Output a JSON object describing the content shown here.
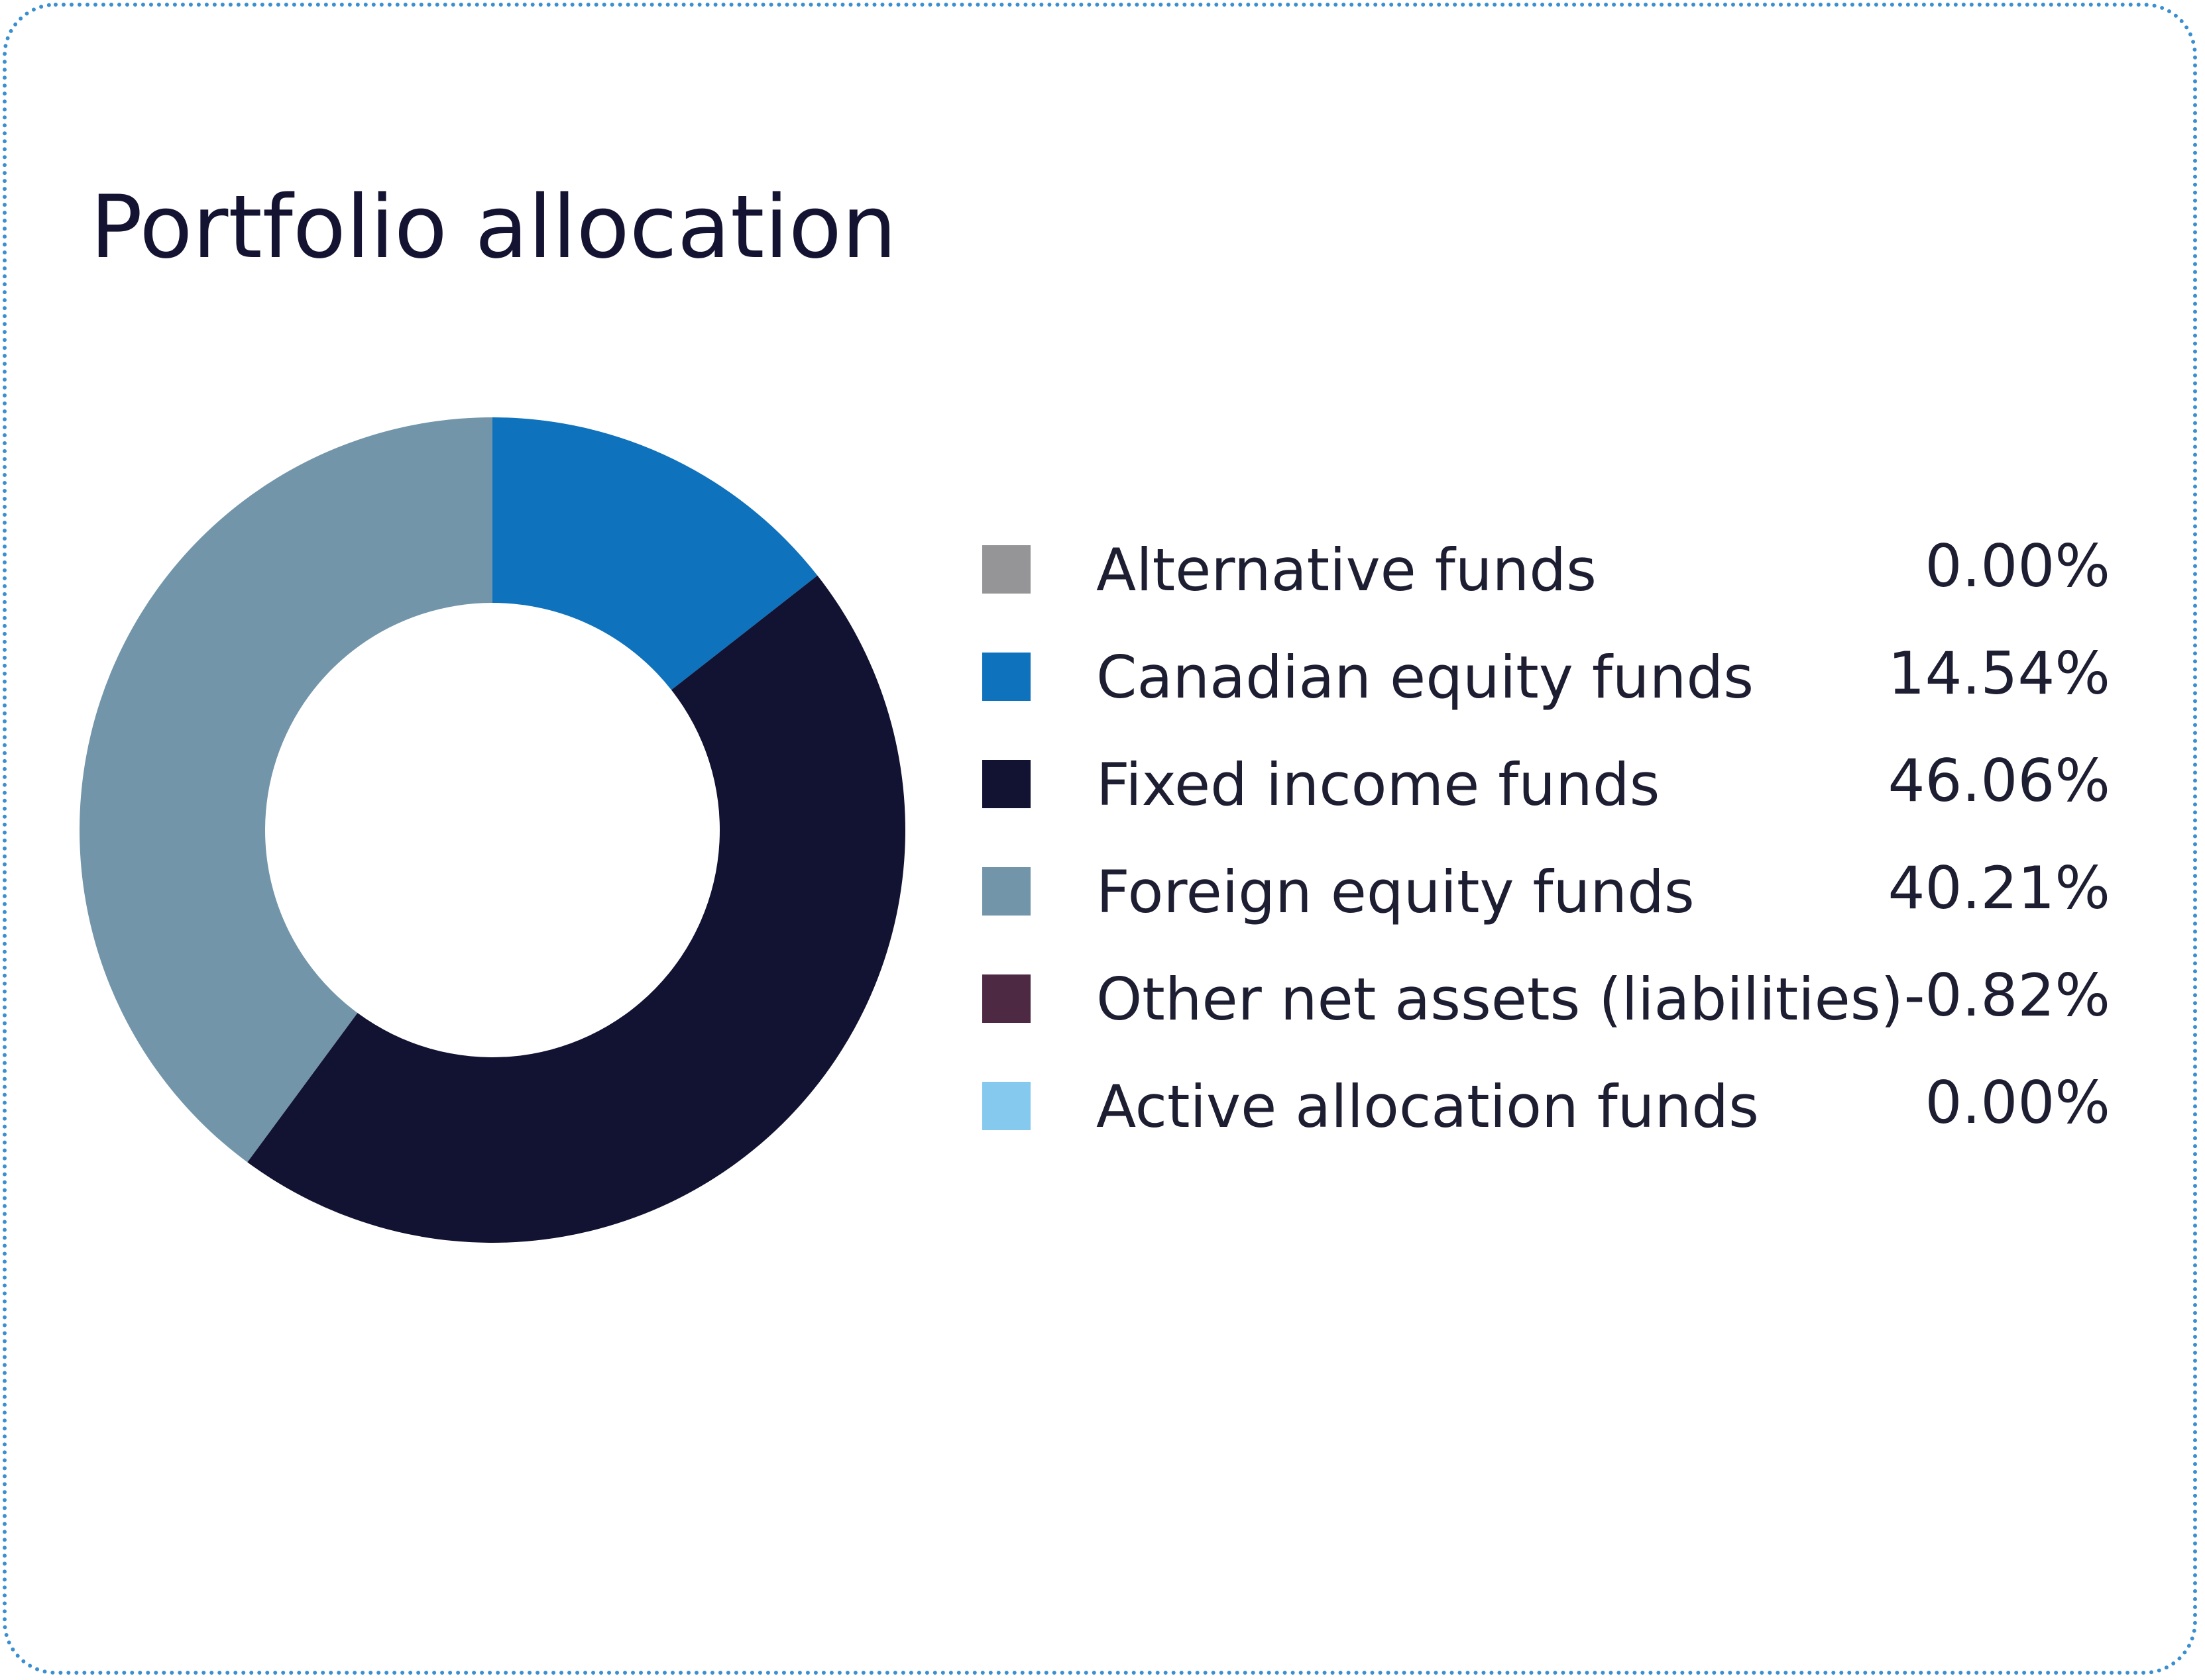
{
  "title": "Portfolio allocation",
  "chart_data": {
    "type": "pie",
    "title": "Portfolio allocation",
    "categories": [
      "Alternative funds",
      "Canadian equity funds",
      "Fixed income funds",
      "Foreign equity funds",
      "Other net assets (liabilities)",
      "Active allocation funds"
    ],
    "values": [
      0.0,
      14.54,
      46.06,
      40.21,
      -0.82,
      0.0
    ],
    "value_labels": [
      "0.00%",
      "14.54%",
      "46.06%",
      "40.21%",
      "-0.82%",
      "0.00%"
    ],
    "colors": [
      "#959597",
      "#0e72bd",
      "#121232",
      "#7295aa",
      "#4d2944",
      "#85c9ef"
    ],
    "legend_position": "right"
  },
  "colors": {
    "card_border": "#3a8fd0",
    "title": "#141432",
    "text": "#1e1e32"
  }
}
